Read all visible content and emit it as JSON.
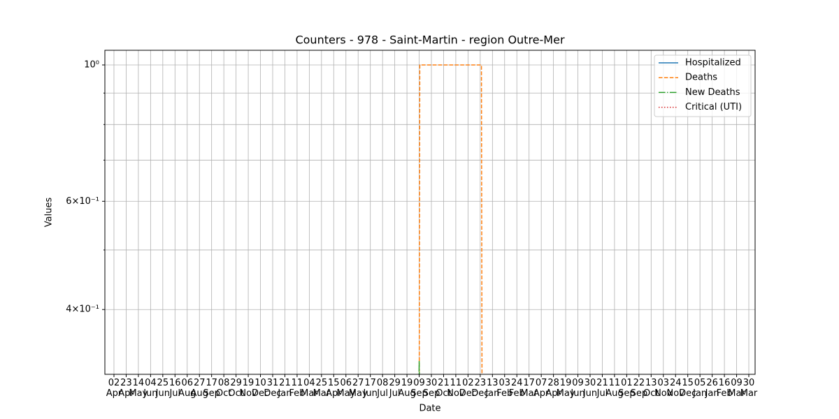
{
  "chart_data": {
    "type": "line",
    "title": "Counters - 978 - Saint-Martin - region Outre-Mer",
    "xlabel": "Date",
    "ylabel": "Values",
    "log_y": true,
    "grid": true,
    "legend": "upper right",
    "xlim": [
      -0.744,
      52.515
    ],
    "xticks": [
      {
        "value": 0,
        "label": "02\nApr"
      },
      {
        "value": 1,
        "label": "23\nApr"
      },
      {
        "value": 2,
        "label": "14\nMay"
      },
      {
        "value": 3,
        "label": "04\nJun"
      },
      {
        "value": 4,
        "label": "25\nJun"
      },
      {
        "value": 5,
        "label": "16\nJul"
      },
      {
        "value": 6,
        "label": "06\nAug"
      },
      {
        "value": 7,
        "label": "27\nAug"
      },
      {
        "value": 8,
        "label": "17\nSep"
      },
      {
        "value": 9,
        "label": "08\nOct"
      },
      {
        "value": 10,
        "label": "29\nOct"
      },
      {
        "value": 11,
        "label": "19\nNov"
      },
      {
        "value": 12,
        "label": "10\nDec"
      },
      {
        "value": 13,
        "label": "31\nDec"
      },
      {
        "value": 14,
        "label": "21\nJan"
      },
      {
        "value": 15,
        "label": "11\nFeb"
      },
      {
        "value": 16,
        "label": "04\nMar"
      },
      {
        "value": 17,
        "label": "25\nMar"
      },
      {
        "value": 18,
        "label": "15\nApr"
      },
      {
        "value": 19,
        "label": "06\nMay"
      },
      {
        "value": 20,
        "label": "27\nMay"
      },
      {
        "value": 21,
        "label": "17\nJun"
      },
      {
        "value": 22,
        "label": "08\nJul"
      },
      {
        "value": 23,
        "label": "29\nJul"
      },
      {
        "value": 24,
        "label": "19\nAug"
      },
      {
        "value": 25,
        "label": "09\nSep"
      },
      {
        "value": 26,
        "label": "30\nSep"
      },
      {
        "value": 27,
        "label": "21\nOct"
      },
      {
        "value": 28,
        "label": "11\nNov"
      },
      {
        "value": 29,
        "label": "02\nDec"
      },
      {
        "value": 30,
        "label": "23\nDec"
      },
      {
        "value": 31,
        "label": "13\nJan"
      },
      {
        "value": 32,
        "label": "03\nFeb"
      },
      {
        "value": 33,
        "label": "24\nFeb"
      },
      {
        "value": 34,
        "label": "17\nMar"
      },
      {
        "value": 35,
        "label": "07\nApr"
      },
      {
        "value": 36,
        "label": "28\nApr"
      },
      {
        "value": 37,
        "label": "19\nMay"
      },
      {
        "value": 38,
        "label": "09\nJun"
      },
      {
        "value": 39,
        "label": "30\nJun"
      },
      {
        "value": 40,
        "label": "21\nJul"
      },
      {
        "value": 41,
        "label": "11\nAug"
      },
      {
        "value": 42,
        "label": "01\nSep"
      },
      {
        "value": 43,
        "label": "22\nSep"
      },
      {
        "value": 44,
        "label": "13\nOct"
      },
      {
        "value": 45,
        "label": "03\nNov"
      },
      {
        "value": 46,
        "label": "24\nNov"
      },
      {
        "value": 47,
        "label": "15\nDec"
      },
      {
        "value": 48,
        "label": "05\nJan"
      },
      {
        "value": 49,
        "label": "26\nJan"
      },
      {
        "value": 50,
        "label": "16\nFeb"
      },
      {
        "value": 51,
        "label": "09\nMar"
      },
      {
        "value": 52,
        "label": "30\nMar"
      }
    ],
    "ylim": [
      0.3138,
      1.0565
    ],
    "yticks": [
      {
        "value": 0.4,
        "label": "4×10⁻¹"
      },
      {
        "value": 0.6,
        "label": "6×10⁻¹"
      },
      {
        "value": 1,
        "label": "10⁰"
      }
    ],
    "yminorticks": [
      0.5,
      0.7,
      0.8,
      0.9
    ],
    "series": [
      {
        "name": "Hospitalized",
        "color": "#1f77b4",
        "dash": "solid",
        "x": [],
        "values": []
      },
      {
        "name": "Deaths",
        "color": "#ff7f0e",
        "dash": "dashed",
        "x": [
          25.0,
          25.05,
          30.1,
          30.15
        ],
        "values": [
          0,
          1,
          1,
          0
        ]
      },
      {
        "name": "New Deaths",
        "color": "#2ca02c",
        "dash": "dashdot",
        "x": [
          24.95,
          25.0,
          25.05
        ],
        "values": [
          0,
          0.33,
          0
        ]
      },
      {
        "name": "Critical (UTI)",
        "color": "#d62728",
        "dash": "dotted",
        "x": [],
        "values": []
      }
    ]
  }
}
